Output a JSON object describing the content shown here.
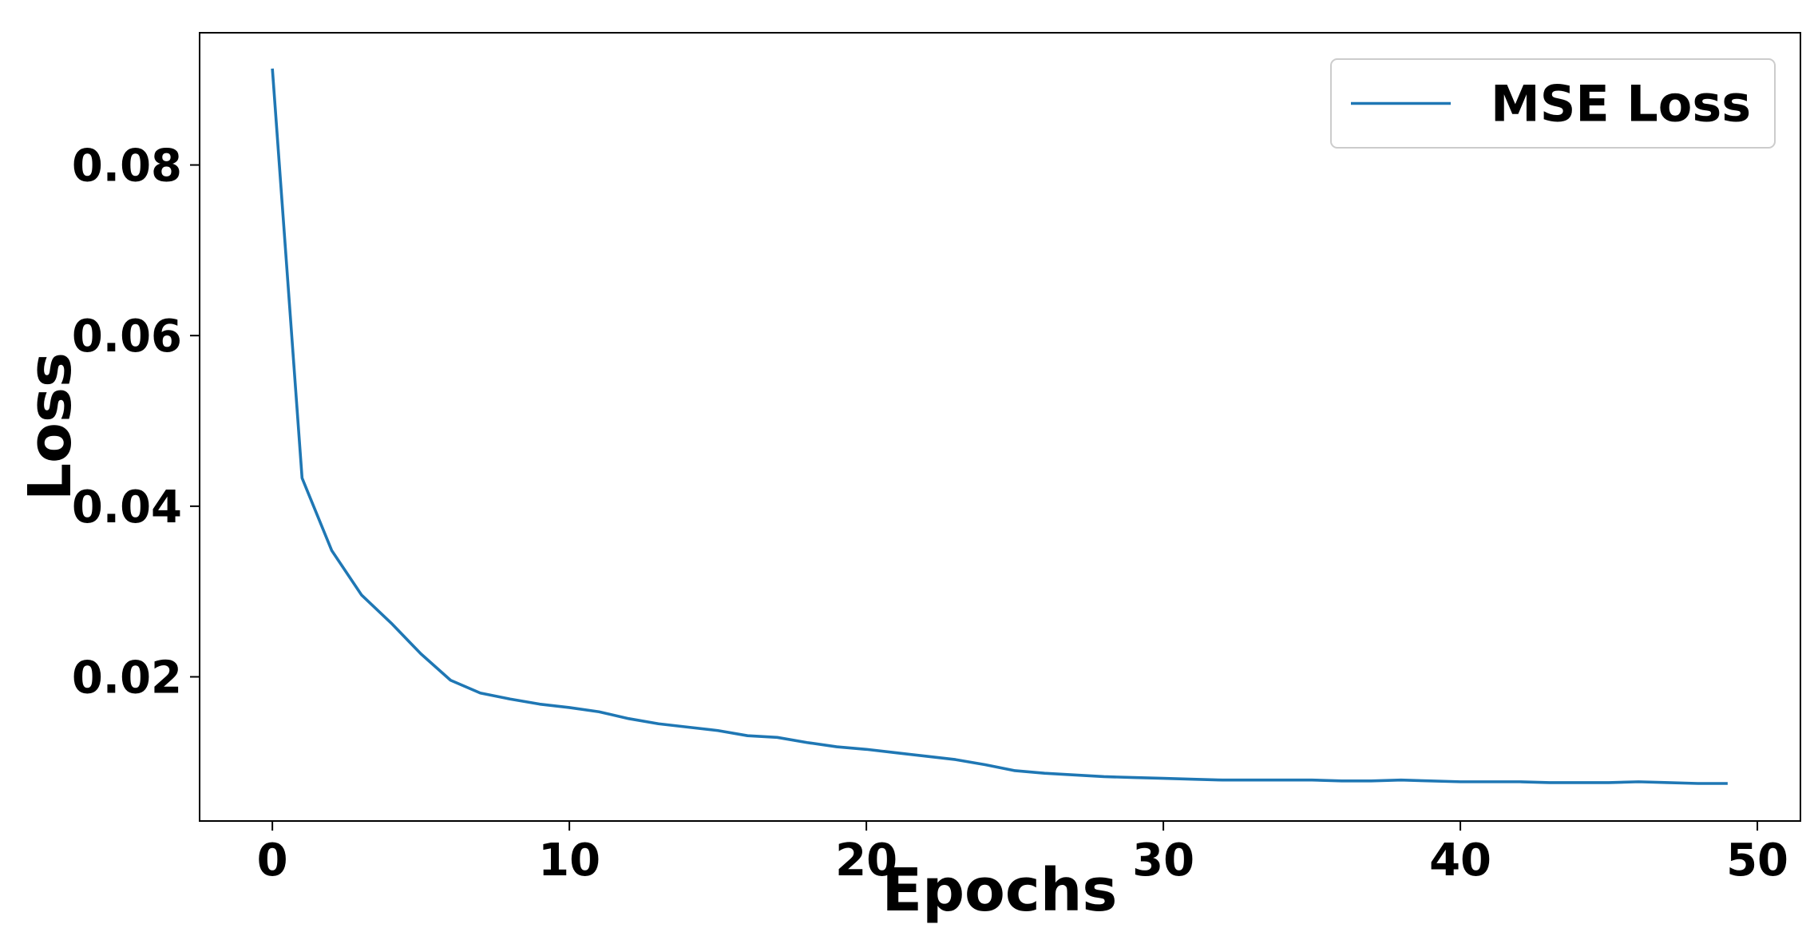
{
  "chart_data": {
    "type": "line",
    "xlabel": "Epochs",
    "ylabel": "Loss",
    "x": [
      0,
      1,
      2,
      3,
      4,
      5,
      6,
      7,
      8,
      9,
      10,
      11,
      12,
      13,
      14,
      15,
      16,
      17,
      18,
      19,
      20,
      21,
      22,
      23,
      24,
      25,
      26,
      27,
      28,
      29,
      30,
      31,
      32,
      33,
      34,
      35,
      36,
      37,
      38,
      39,
      40,
      41,
      42,
      43,
      44,
      45,
      46,
      47,
      48,
      49
    ],
    "series": [
      {
        "name": "MSE Loss",
        "color": "#1f77b4",
        "values": [
          0.0913,
          0.0433,
          0.0348,
          0.0296,
          0.0263,
          0.0227,
          0.0196,
          0.0181,
          0.0174,
          0.0168,
          0.0164,
          0.0159,
          0.0151,
          0.0145,
          0.0141,
          0.0137,
          0.0131,
          0.0129,
          0.0123,
          0.0118,
          0.0115,
          0.0111,
          0.0107,
          0.0103,
          0.0097,
          0.009,
          0.0087,
          0.0085,
          0.0083,
          0.0082,
          0.0081,
          0.008,
          0.0079,
          0.0079,
          0.0079,
          0.0079,
          0.0078,
          0.0078,
          0.0079,
          0.0078,
          0.0077,
          0.0077,
          0.0077,
          0.0076,
          0.0076,
          0.0076,
          0.0077,
          0.0076,
          0.0075,
          0.0075
        ]
      }
    ],
    "xlim": [
      -2.45,
      51.45
    ],
    "xticks": [
      0,
      10,
      20,
      30,
      40,
      50
    ],
    "ylim": [
      0.0031,
      0.0955
    ],
    "yticks": [
      0.02,
      0.04,
      0.06,
      0.08
    ],
    "grid": false,
    "legend": "upper right"
  }
}
